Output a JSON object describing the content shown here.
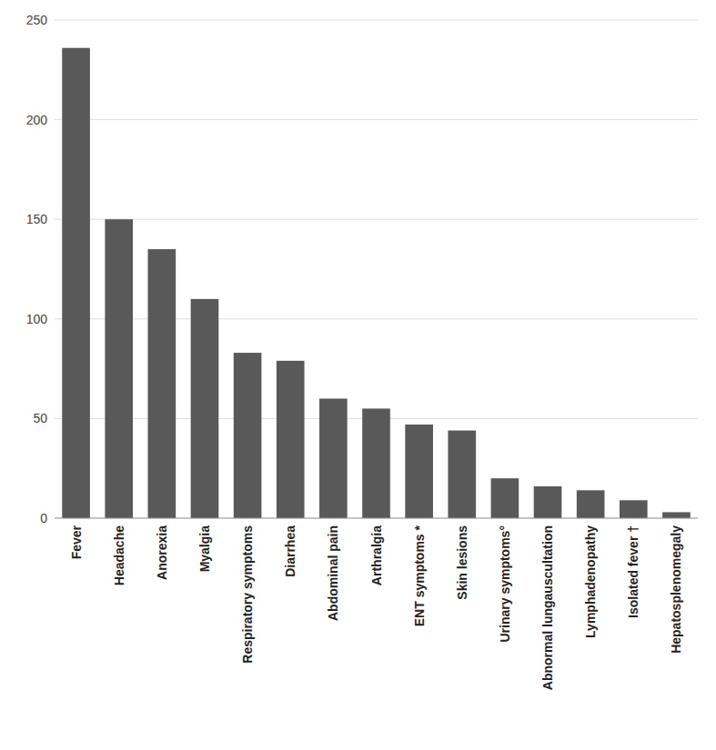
{
  "chart_data": {
    "type": "bar",
    "categories": [
      "Fever",
      "Headache",
      "Anorexia",
      "Myalgia",
      "Respiratory symptoms",
      "Diarrhea",
      "Abdominal pain",
      "Arthralgia",
      "ENT symptoms *",
      "Skin lesions",
      "Urinary symptoms°",
      "Abnormal lungauscultation",
      "Lymphadenopathy",
      "Isolated fever †",
      "Hepatosplenomegaly"
    ],
    "values": [
      236,
      150,
      135,
      110,
      83,
      79,
      60,
      55,
      47,
      44,
      20,
      16,
      14,
      9,
      3
    ],
    "color": "#595959",
    "ylim": [
      0,
      250
    ],
    "yticks": [
      0,
      50,
      100,
      150,
      200,
      250
    ],
    "grid": true
  }
}
